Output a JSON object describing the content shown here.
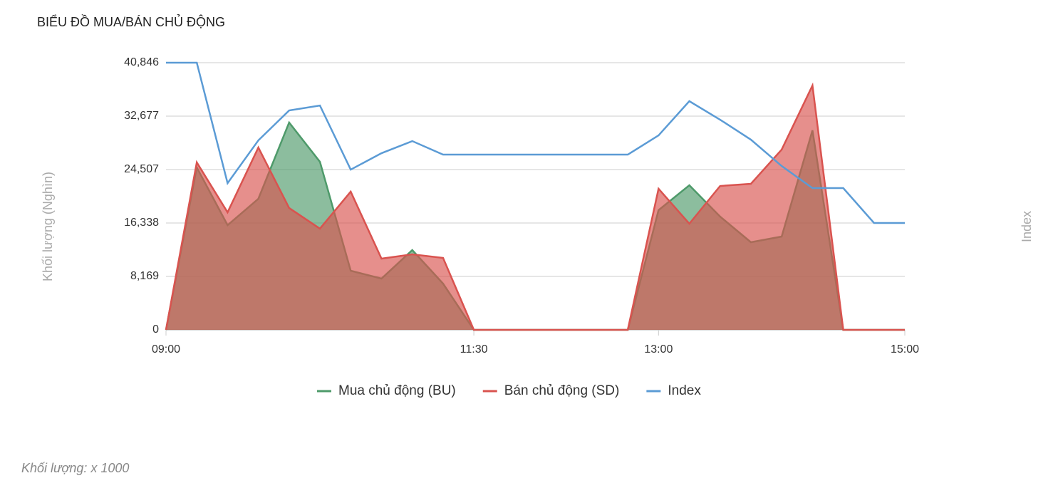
{
  "chart_data": {
    "type": "area",
    "title": "BIỂU ĐỒ MUA/BÁN CHỦ ĐỘNG",
    "y_label": "Khối lượng (Nghìn)",
    "y2_label": "Index",
    "footnote": "Khối lượng: x 1000",
    "x": [
      "09:00",
      "09:15",
      "09:30",
      "09:45",
      "10:00",
      "10:15",
      "10:30",
      "10:45",
      "11:00",
      "11:15",
      "11:30",
      "12:45",
      "13:00",
      "13:15",
      "13:30",
      "13:45",
      "14:00",
      "14:15",
      "14:30",
      "14:45",
      "15:00"
    ],
    "xlim": [
      "09:00",
      "15:00"
    ],
    "xticks": [
      "09:00",
      "11:30",
      "13:00",
      "15:00"
    ],
    "ylim": [
      0,
      40846
    ],
    "yticks": [
      0,
      {
        "value": 8169,
        "label": "8,169"
      },
      {
        "value": 16338,
        "label": "16,338"
      },
      {
        "value": 24507,
        "label": "24,507"
      },
      {
        "value": 32677,
        "label": "32,677"
      },
      {
        "value": 40846,
        "label": "40,846"
      }
    ],
    "grid": true,
    "series": [
      {
        "name": "Mua chủ động (BU)",
        "color": "#4e9a6a",
        "fill": true,
        "values": [
          0,
          24830,
          16010,
          20040,
          31700,
          25700,
          9040,
          7840,
          12200,
          7080,
          0,
          0,
          18300,
          22110,
          17320,
          13400,
          14270,
          30500,
          0,
          0,
          0
        ]
      },
      {
        "name": "Bán chủ động (SD)",
        "color": "#d9534f",
        "fill": true,
        "values": [
          0,
          25600,
          17970,
          27880,
          18630,
          15470,
          21130,
          10890,
          11550,
          11000,
          0,
          0,
          21570,
          16230,
          22000,
          22330,
          27560,
          37360,
          0,
          0,
          0
        ]
      },
      {
        "name": "Index",
        "color": "#5b9bd5",
        "fill": false,
        "values": [
          40846,
          40846,
          22430,
          28970,
          33540,
          34300,
          24500,
          27010,
          28860,
          26790,
          26790,
          26790,
          29730,
          34960,
          32130,
          29080,
          25050,
          21670,
          21670,
          16340,
          16340
        ]
      }
    ]
  }
}
